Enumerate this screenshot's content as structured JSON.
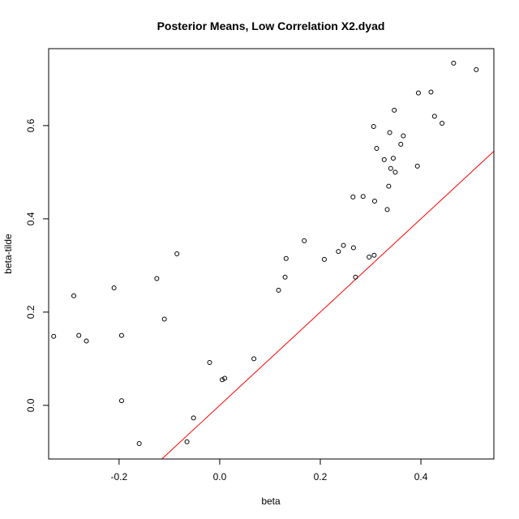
{
  "chart_data": {
    "type": "scatter",
    "title": "Posterior Means, Low Correlation X2.dyad",
    "xlabel": "beta",
    "ylabel": "beta-tilde",
    "xlim": [
      -0.34,
      0.545
    ],
    "ylim": [
      -0.115,
      0.765
    ],
    "x_ticks": [
      -0.2,
      0.0,
      0.2,
      0.4
    ],
    "x_tick_labels": [
      "-0.2",
      "0.0",
      "0.2",
      "0.4"
    ],
    "y_ticks": [
      0.0,
      0.2,
      0.4,
      0.6
    ],
    "y_tick_labels": [
      "0.0",
      "0.2",
      "0.4",
      "0.6"
    ],
    "grid": false,
    "reference_line": {
      "slope": 1,
      "intercept": 0,
      "color": "#ff0000"
    },
    "point_color": "#000000",
    "points": [
      {
        "x": -0.33,
        "y": 0.148
      },
      {
        "x": -0.29,
        "y": 0.235
      },
      {
        "x": -0.28,
        "y": 0.15
      },
      {
        "x": -0.265,
        "y": 0.138
      },
      {
        "x": -0.21,
        "y": 0.252
      },
      {
        "x": -0.195,
        "y": 0.15
      },
      {
        "x": -0.195,
        "y": 0.01
      },
      {
        "x": -0.16,
        "y": -0.082
      },
      {
        "x": -0.125,
        "y": 0.272
      },
      {
        "x": -0.11,
        "y": 0.185
      },
      {
        "x": -0.085,
        "y": 0.325
      },
      {
        "x": -0.065,
        "y": -0.078
      },
      {
        "x": -0.052,
        "y": -0.027
      },
      {
        "x": -0.02,
        "y": 0.092
      },
      {
        "x": 0.005,
        "y": 0.055
      },
      {
        "x": 0.01,
        "y": 0.058
      },
      {
        "x": 0.068,
        "y": 0.1
      },
      {
        "x": 0.117,
        "y": 0.247
      },
      {
        "x": 0.13,
        "y": 0.275
      },
      {
        "x": 0.132,
        "y": 0.315
      },
      {
        "x": 0.168,
        "y": 0.353
      },
      {
        "x": 0.208,
        "y": 0.313
      },
      {
        "x": 0.236,
        "y": 0.33
      },
      {
        "x": 0.246,
        "y": 0.343
      },
      {
        "x": 0.266,
        "y": 0.338
      },
      {
        "x": 0.265,
        "y": 0.447
      },
      {
        "x": 0.27,
        "y": 0.275
      },
      {
        "x": 0.285,
        "y": 0.448
      },
      {
        "x": 0.297,
        "y": 0.318
      },
      {
        "x": 0.306,
        "y": 0.598
      },
      {
        "x": 0.307,
        "y": 0.322
      },
      {
        "x": 0.308,
        "y": 0.438
      },
      {
        "x": 0.312,
        "y": 0.551
      },
      {
        "x": 0.327,
        "y": 0.527
      },
      {
        "x": 0.333,
        "y": 0.42
      },
      {
        "x": 0.336,
        "y": 0.47
      },
      {
        "x": 0.338,
        "y": 0.585
      },
      {
        "x": 0.34,
        "y": 0.508
      },
      {
        "x": 0.345,
        "y": 0.53
      },
      {
        "x": 0.347,
        "y": 0.633
      },
      {
        "x": 0.349,
        "y": 0.5
      },
      {
        "x": 0.36,
        "y": 0.56
      },
      {
        "x": 0.365,
        "y": 0.578
      },
      {
        "x": 0.393,
        "y": 0.513
      },
      {
        "x": 0.395,
        "y": 0.67
      },
      {
        "x": 0.42,
        "y": 0.672
      },
      {
        "x": 0.427,
        "y": 0.62
      },
      {
        "x": 0.442,
        "y": 0.605
      },
      {
        "x": 0.465,
        "y": 0.734
      },
      {
        "x": 0.51,
        "y": 0.72
      }
    ]
  }
}
